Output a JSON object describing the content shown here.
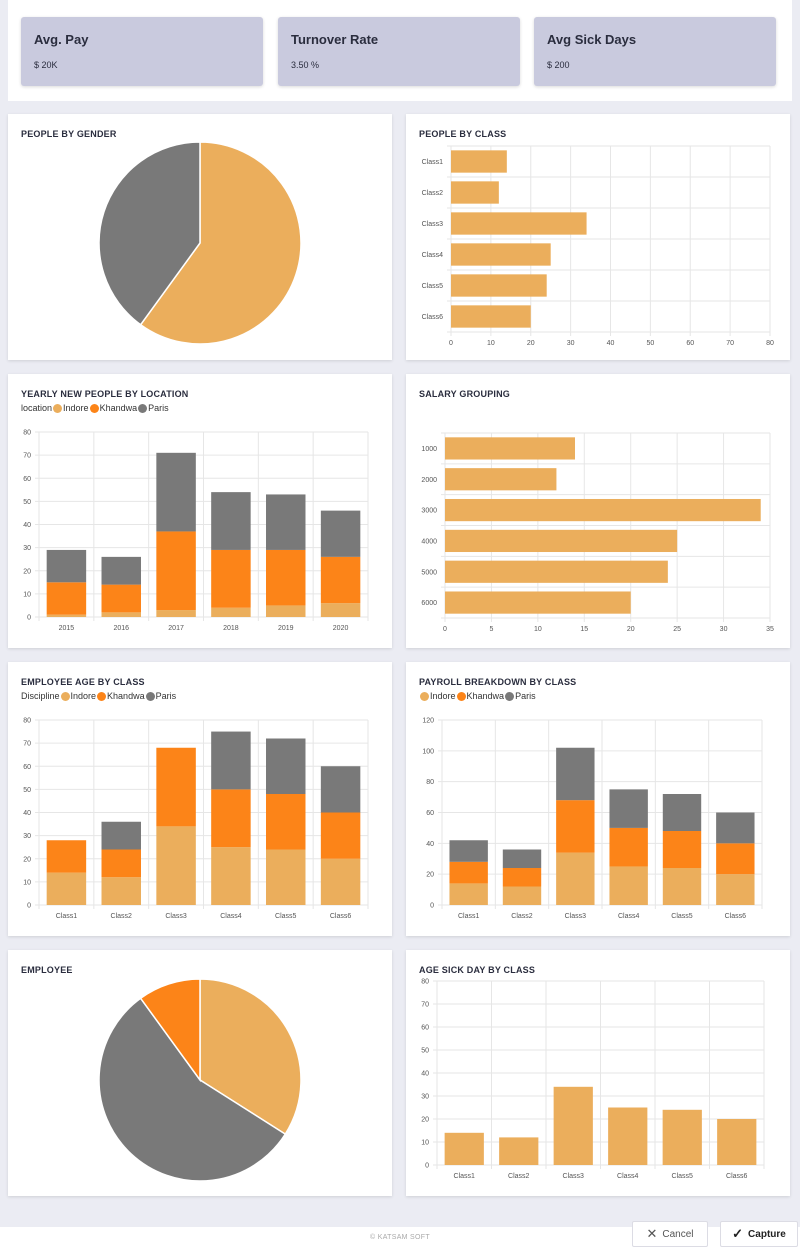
{
  "kpis": [
    {
      "title": "Avg. Pay",
      "value": "$ 20K"
    },
    {
      "title": "Turnover Rate",
      "value": "3.50 %"
    },
    {
      "title": "Avg Sick Days",
      "value": "$ 200"
    }
  ],
  "cards": {
    "people_by_gender": {
      "title": "PEOPLE BY GENDER"
    },
    "people_by_class": {
      "title": "PEOPLE BY CLASS"
    },
    "yearly_new_people": {
      "title": "YEARLY NEW PEOPLE BY LOCATION",
      "legend_label": "location"
    },
    "salary_grouping": {
      "title": "SALARY GROUPING"
    },
    "employee_age": {
      "title": "EMPLOYEE AGE BY CLASS",
      "legend_label": "Discipline"
    },
    "payroll": {
      "title": "PAYROLL BREAKDOWN BY CLASS",
      "legend_label": ""
    },
    "employee": {
      "title": "EMPLOYEE"
    },
    "age_sick": {
      "title": "AGE SICK DAY BY CLASS"
    }
  },
  "colors": {
    "Indore": "#ebae5c",
    "Khandwa": "#fc8418",
    "Paris": "#797979",
    "grid": "#e6e6e6"
  },
  "footer": {
    "copyright": "© KATSAM SOFT",
    "cancel_label": "Cancel",
    "capture_label": "Capture",
    "cancel_icon": "close-icon",
    "capture_icon": "check-icon"
  },
  "chart_data": [
    {
      "id": "people_by_gender",
      "type": "pie",
      "slices": [
        {
          "label": "",
          "value": 60,
          "color": "#ebae5c"
        },
        {
          "label": "",
          "value": 40,
          "color": "#797979"
        }
      ]
    },
    {
      "id": "people_by_class",
      "type": "bar",
      "orientation": "horizontal",
      "categories": [
        "Class1",
        "Class2",
        "Class3",
        "Class4",
        "Class5",
        "Class6"
      ],
      "values": [
        14,
        12,
        34,
        25,
        24,
        20
      ],
      "xlim": [
        0,
        80
      ],
      "ticks": [
        0,
        10,
        20,
        30,
        40,
        50,
        60,
        70,
        80
      ]
    },
    {
      "id": "yearly_new_people",
      "type": "bar",
      "stacked": true,
      "categories": [
        "2015",
        "2016",
        "2017",
        "2018",
        "2019",
        "2020"
      ],
      "series": [
        {
          "name": "Indore",
          "values": [
            1,
            2,
            3,
            4,
            5,
            6
          ]
        },
        {
          "name": "Khandwa",
          "values": [
            14,
            12,
            34,
            25,
            24,
            20
          ]
        },
        {
          "name": "Paris",
          "values": [
            14,
            12,
            34,
            25,
            24,
            20
          ]
        }
      ],
      "ylim": [
        0,
        80
      ],
      "ticks": [
        0,
        10,
        20,
        30,
        40,
        50,
        60,
        70,
        80
      ]
    },
    {
      "id": "salary_grouping",
      "type": "bar",
      "orientation": "horizontal",
      "categories": [
        "1000",
        "2000",
        "3000",
        "4000",
        "5000",
        "6000"
      ],
      "values": [
        14,
        12,
        34,
        25,
        24,
        20
      ],
      "xlim": [
        0,
        35
      ],
      "ticks": [
        0,
        5,
        10,
        15,
        20,
        25,
        30,
        35
      ]
    },
    {
      "id": "employee_age",
      "type": "bar",
      "stacked": true,
      "categories": [
        "Class1",
        "Class2",
        "Class3",
        "Class4",
        "Class5",
        "Class6"
      ],
      "series": [
        {
          "name": "Indore",
          "values": [
            14,
            12,
            34,
            25,
            24,
            20
          ]
        },
        {
          "name": "Khandwa",
          "values": [
            14,
            12,
            34,
            25,
            24,
            20
          ]
        },
        {
          "name": "Paris",
          "values": [
            0,
            12,
            0,
            25,
            24,
            20
          ]
        }
      ],
      "ylim": [
        0,
        80
      ],
      "ticks": [
        0,
        10,
        20,
        30,
        40,
        50,
        60,
        70,
        80
      ]
    },
    {
      "id": "payroll",
      "type": "bar",
      "stacked": true,
      "categories": [
        "Class1",
        "Class2",
        "Class3",
        "Class4",
        "Class5",
        "Class6"
      ],
      "series": [
        {
          "name": "Indore",
          "values": [
            14,
            12,
            34,
            25,
            24,
            20
          ]
        },
        {
          "name": "Khandwa",
          "values": [
            14,
            12,
            34,
            25,
            24,
            20
          ]
        },
        {
          "name": "Paris",
          "values": [
            14,
            12,
            34,
            25,
            24,
            20
          ]
        }
      ],
      "ylim": [
        0,
        120
      ],
      "ticks": [
        0,
        20,
        40,
        60,
        80,
        100,
        120
      ]
    },
    {
      "id": "employee",
      "type": "pie",
      "slices": [
        {
          "label": "",
          "value": 34,
          "color": "#ebae5c"
        },
        {
          "label": "",
          "value": 56,
          "color": "#797979"
        },
        {
          "label": "",
          "value": 10,
          "color": "#fc8418"
        }
      ]
    },
    {
      "id": "age_sick",
      "type": "bar",
      "categories": [
        "Class1",
        "Class2",
        "Class3",
        "Class4",
        "Class5",
        "Class6"
      ],
      "values": [
        14,
        12,
        34,
        25,
        24,
        20
      ],
      "ylim": [
        0,
        80
      ],
      "ticks": [
        0,
        10,
        20,
        30,
        40,
        50,
        60,
        70,
        80
      ]
    }
  ]
}
